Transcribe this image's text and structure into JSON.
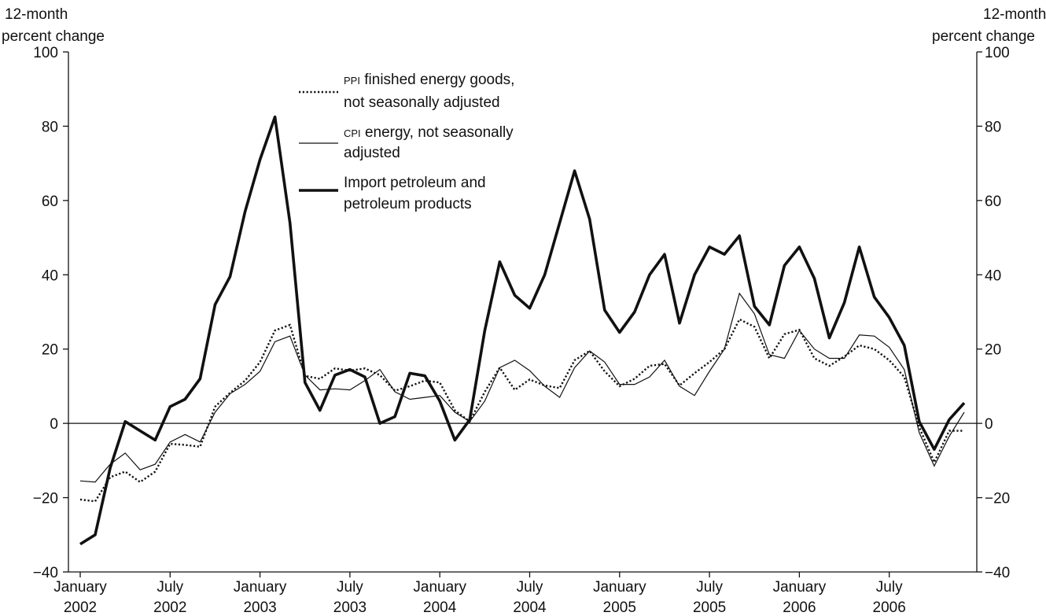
{
  "chart_data": {
    "type": "line",
    "left_axis_label": [
      "12-month",
      "percent change"
    ],
    "right_axis_label": [
      "12-month",
      "percent change"
    ],
    "ylim": [
      -40,
      100
    ],
    "y_ticks": [
      100,
      80,
      60,
      40,
      20,
      0,
      -20,
      -40
    ],
    "y_tick_labels": [
      "100",
      "80",
      "60",
      "40",
      "20",
      "0",
      "−20",
      "−40"
    ],
    "x_range": [
      "2002-01",
      "2006-12"
    ],
    "x_ticks": [
      {
        "month": "2002-01",
        "line1": "January",
        "line2": "2002"
      },
      {
        "month": "2002-07",
        "line1": "July",
        "line2": "2002"
      },
      {
        "month": "2003-01",
        "line1": "January",
        "line2": "2003"
      },
      {
        "month": "2003-07",
        "line1": "July",
        "line2": "2003"
      },
      {
        "month": "2004-01",
        "line1": "January",
        "line2": "2004"
      },
      {
        "month": "2004-07",
        "line1": "July",
        "line2": "2004"
      },
      {
        "month": "2005-01",
        "line1": "January",
        "line2": "2005"
      },
      {
        "month": "2005-07",
        "line1": "July",
        "line2": "2005"
      },
      {
        "month": "2006-01",
        "line1": "January",
        "line2": "2006"
      },
      {
        "month": "2006-07",
        "line1": "July",
        "line2": "2006"
      }
    ],
    "zero_line": true,
    "grid": false,
    "legend_position": "top-center",
    "x": [
      "2002-01",
      "2002-02",
      "2002-03",
      "2002-04",
      "2002-05",
      "2002-06",
      "2002-07",
      "2002-08",
      "2002-09",
      "2002-10",
      "2002-11",
      "2002-12",
      "2003-01",
      "2003-02",
      "2003-03",
      "2003-04",
      "2003-05",
      "2003-06",
      "2003-07",
      "2003-08",
      "2003-09",
      "2003-10",
      "2003-11",
      "2003-12",
      "2004-01",
      "2004-02",
      "2004-03",
      "2004-04",
      "2004-05",
      "2004-06",
      "2004-07",
      "2004-08",
      "2004-09",
      "2004-10",
      "2004-11",
      "2004-12",
      "2005-01",
      "2005-02",
      "2005-03",
      "2005-04",
      "2005-05",
      "2005-06",
      "2005-07",
      "2005-08",
      "2005-09",
      "2005-10",
      "2005-11",
      "2005-12",
      "2006-01",
      "2006-02",
      "2006-03",
      "2006-04",
      "2006-05",
      "2006-06",
      "2006-07",
      "2006-08",
      "2006-09",
      "2006-10",
      "2006-11",
      "2006-12"
    ],
    "series": [
      {
        "name": "PPI finished energy goods, not seasonally adjusted",
        "legend_lines": [
          [
            {
              "text": "PPI",
              "small": true
            },
            {
              "text": " finished energy goods,",
              "small": false
            }
          ],
          [
            {
              "text": "not seasonally adjusted",
              "small": false
            }
          ]
        ],
        "style": "dotted",
        "values": [
          -20.5,
          -21,
          -14.5,
          -13,
          -15.8,
          -13,
          -5.5,
          -5.8,
          -6.3,
          4.5,
          8.2,
          11.5,
          16.5,
          25,
          26.5,
          12.8,
          12,
          14.8,
          14.2,
          14.8,
          13,
          8.8,
          10,
          11.5,
          11,
          3.5,
          0.5,
          8.5,
          15,
          9,
          11.8,
          10.2,
          9.5,
          17,
          19.5,
          14,
          10,
          12,
          15.5,
          16,
          10.2,
          13.5,
          16.5,
          20,
          28,
          26,
          17.5,
          24,
          25.2,
          17.5,
          15.5,
          18,
          21,
          20,
          17,
          12.5,
          -1,
          -10.5,
          -2,
          -2
        ]
      },
      {
        "name": "CPI energy, not seasonally adjusted",
        "legend_lines": [
          [
            {
              "text": "CPI",
              "small": true
            },
            {
              "text": " energy, not seasonally",
              "small": false
            }
          ],
          [
            {
              "text": "adjusted",
              "small": false
            }
          ]
        ],
        "style": "thin",
        "values": [
          -15.5,
          -15.8,
          -11,
          -8,
          -12.5,
          -11,
          -5,
          -3,
          -5,
          3,
          8,
          10.5,
          14,
          22,
          23.5,
          13,
          9,
          9.3,
          9,
          11.5,
          14.5,
          8.5,
          6.5,
          7,
          7.5,
          3,
          0.5,
          6,
          15,
          17,
          14.2,
          10,
          7,
          15,
          19.5,
          16.5,
          10.5,
          10.5,
          12.5,
          17,
          10,
          7.5,
          14,
          20,
          35,
          29.5,
          18.5,
          17.5,
          25,
          20,
          17.5,
          17.5,
          23.8,
          23.5,
          20.5,
          14.5,
          -2.5,
          -11.5,
          -3.5,
          3
        ]
      },
      {
        "name": "Import petroleum and petroleum products",
        "legend_lines": [
          [
            {
              "text": "Import petroleum and",
              "small": false
            }
          ],
          [
            {
              "text": "petroleum products",
              "small": false
            }
          ]
        ],
        "style": "thick",
        "values": [
          -32.5,
          -30,
          -12,
          0.5,
          -2,
          -4.5,
          4.5,
          6.5,
          12,
          32,
          39.5,
          57,
          71,
          82.5,
          54,
          11,
          3.5,
          13,
          14.5,
          12.5,
          0,
          1.8,
          13.5,
          12.8,
          6,
          -4.5,
          1,
          25,
          43.5,
          34.5,
          31,
          40,
          54,
          68,
          55,
          30.5,
          24.5,
          30,
          40,
          45.5,
          27,
          40,
          47.5,
          45.5,
          50.5,
          31.5,
          26.5,
          42.5,
          47.5,
          39,
          23,
          32.5,
          47.5,
          34,
          28.5,
          21,
          0.5,
          -7,
          1,
          5.5
        ]
      }
    ]
  }
}
